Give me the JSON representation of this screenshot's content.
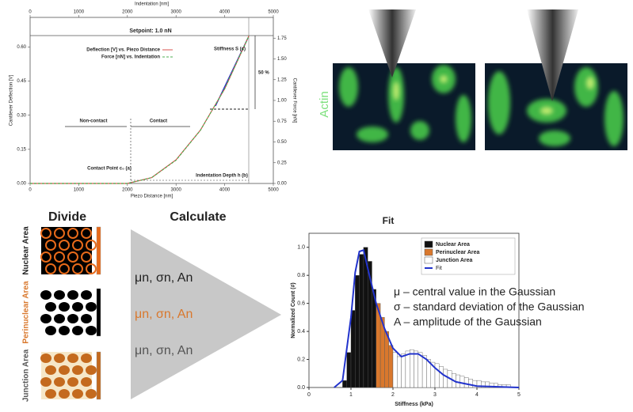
{
  "chart_data": [
    {
      "type": "line",
      "x_label": "Piezo Distance [nm]",
      "x2_label": "Indentation [nm]",
      "y_label": "Cantilever Deflection [V]",
      "y2_label": "Cantilever Force [nN]",
      "setpoint": "Setpoint: 1.0 nN",
      "x": [
        0,
        500,
        1000,
        1500,
        2000,
        2500,
        3000,
        3500,
        4000,
        4500
      ],
      "series": [
        {
          "name": "Deflection [V] vs. Piezo Distance",
          "color": "#d9534f",
          "line_style": "solid",
          "values": [
            0,
            0,
            0,
            0,
            0,
            0.026,
            0.104,
            0.234,
            0.416,
            0.65
          ]
        },
        {
          "name": "Force [nN] vs. Indentation",
          "color": "#4caf50",
          "line_style": "dashed",
          "axis": "y2",
          "values": [
            0,
            0,
            0,
            0,
            0,
            0.07,
            0.28,
            0.64,
            1.14,
            1.78
          ]
        }
      ],
      "xlim": [
        0,
        5000
      ],
      "xticks": [
        0,
        1000,
        2000,
        3000,
        4000,
        5000
      ],
      "x2lim": [
        0,
        5000
      ],
      "x2ticks": [
        0,
        1000,
        2000,
        3000,
        4000,
        5000
      ],
      "ylim": [
        0,
        0.73
      ],
      "yticks": [
        {
          "value": 0,
          "label": "0.00"
        },
        {
          "value": 0.15,
          "label": "0.15"
        },
        {
          "value": 0.3,
          "label": "0.30"
        },
        {
          "value": 0.45,
          "label": "0.45"
        },
        {
          "value": 0.6,
          "label": "0.60"
        }
      ],
      "y2lim": [
        0,
        2.0
      ],
      "y2ticks": [
        {
          "value": 0,
          "label": "0.00"
        },
        {
          "value": 0.25,
          "label": "0.25"
        },
        {
          "value": 0.5,
          "label": "0.50"
        },
        {
          "value": 0.75,
          "label": "0.75"
        },
        {
          "value": 1.0,
          "label": "1.00"
        },
        {
          "value": 1.25,
          "label": "1.25"
        },
        {
          "value": 1.5,
          "label": "1.50"
        },
        {
          "value": 1.75,
          "label": "1.75"
        }
      ],
      "annotations": [
        "Stiffness S (c)",
        "50 %",
        "Non-contact",
        "Contact",
        "Contact Point c₀ (a)",
        "Indentation Depth h (b)"
      ]
    },
    {
      "type": "histogram",
      "title": "Fit",
      "x_label": "Stiffness (kPa)",
      "y_label": "Normalized Count (#)",
      "series": [
        {
          "name": "Nuclear Area",
          "color": "#111111",
          "bins": [
            0.8,
            0.9,
            1.0,
            1.1,
            1.2,
            1.3,
            1.4,
            1.5,
            1.6
          ],
          "values": [
            0.05,
            0.25,
            0.55,
            0.8,
            0.95,
            1.0,
            0.9,
            0.7
          ]
        },
        {
          "name": "Perinuclear Area",
          "color": "#d9782d",
          "bins": [
            1.6,
            1.7,
            1.8,
            1.9,
            2.0
          ],
          "values": [
            0.6,
            0.5,
            0.4,
            0.3
          ]
        },
        {
          "name": "Junction Area",
          "color": "#ffffff",
          "bins": [
            2.0,
            2.1,
            2.2,
            2.3,
            2.4,
            2.5,
            2.6,
            2.7,
            2.8,
            2.9,
            3.0,
            3.1,
            3.2,
            3.3,
            3.4,
            3.5,
            3.6,
            3.7,
            3.8,
            3.9,
            4.0,
            4.1,
            4.2,
            4.3,
            4.4,
            4.5,
            4.6,
            4.7,
            4.8
          ],
          "values": [
            0.25,
            0.22,
            0.24,
            0.26,
            0.27,
            0.26,
            0.25,
            0.23,
            0.2,
            0.18,
            0.17,
            0.15,
            0.13,
            0.12,
            0.1,
            0.09,
            0.08,
            0.07,
            0.06,
            0.05,
            0.05,
            0.04,
            0.04,
            0.03,
            0.03,
            0.02,
            0.02,
            0.02
          ]
        }
      ],
      "fit": {
        "name": "Fit",
        "color": "#2233cc",
        "x": [
          0.6,
          0.8,
          1.0,
          1.1,
          1.2,
          1.3,
          1.4,
          1.6,
          1.8,
          2.0,
          2.2,
          2.4,
          2.6,
          2.8,
          3.0,
          3.2,
          3.5,
          4.0,
          5.0
        ],
        "values": [
          0,
          0.05,
          0.5,
          0.82,
          0.97,
          0.98,
          0.85,
          0.6,
          0.42,
          0.28,
          0.22,
          0.24,
          0.24,
          0.2,
          0.14,
          0.09,
          0.04,
          0.01,
          0
        ]
      },
      "xlim": [
        0,
        5
      ],
      "xticks": [
        0,
        1,
        2,
        3,
        4,
        5
      ],
      "ylim": [
        0,
        1.1
      ],
      "yticks": [
        {
          "value": 0,
          "label": "0.0"
        },
        {
          "value": 0.2,
          "label": "0.2"
        },
        {
          "value": 0.4,
          "label": "0.4"
        },
        {
          "value": 0.6,
          "label": "0.6"
        },
        {
          "value": 0.8,
          "label": "0.8"
        },
        {
          "value": 1.0,
          "label": "1.0"
        }
      ],
      "legend": "top-right"
    }
  ],
  "labels": {
    "actin": "Actin",
    "divide": "Divide",
    "calculate": "Calculate",
    "areas": [
      "Nuclear Area",
      "Perinuclear Area",
      "Junction Area"
    ],
    "params": [
      "μn, σn, An",
      "μn, σn, An",
      "μn, σn, An"
    ],
    "definitions": [
      "μ – central value in the Gaussian",
      "σ – standard deviation of the Gaussian",
      "A – amplitude of the Gaussian"
    ]
  }
}
